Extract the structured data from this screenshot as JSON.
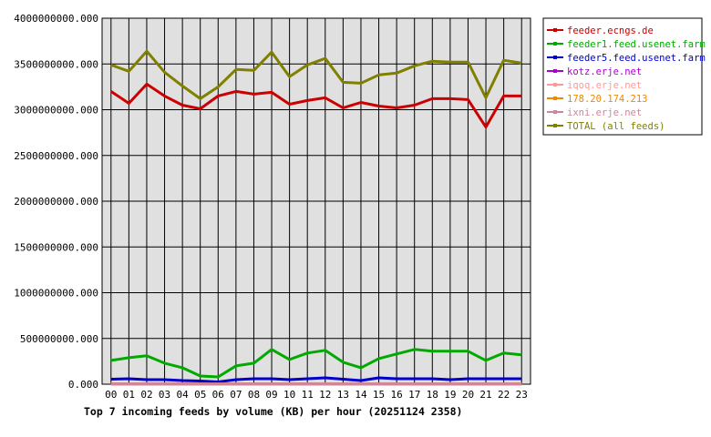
{
  "chart_data": {
    "type": "line",
    "title": "Top 7 incoming feeds by volume (KB) per hour (20251124 2358)",
    "xlabel": "",
    "ylabel": "",
    "categories": [
      "00",
      "01",
      "02",
      "03",
      "04",
      "05",
      "06",
      "07",
      "08",
      "09",
      "10",
      "11",
      "12",
      "13",
      "14",
      "15",
      "16",
      "17",
      "18",
      "19",
      "20",
      "21",
      "22",
      "23"
    ],
    "y_ticks": [
      "0.000",
      "500000000.000",
      "1000000000.000",
      "1500000000.000",
      "2000000000.000",
      "2500000000.000",
      "3000000000.000",
      "3500000000.000",
      "4000000000.000"
    ],
    "ylim": [
      0,
      4000000000
    ],
    "grid": true,
    "legend_position": "right",
    "series": [
      {
        "name": "feeder.ecngs.de",
        "color": "#cc0000",
        "values": [
          3200000000,
          3070000000,
          3280000000,
          3150000000,
          3050000000,
          3010000000,
          3150000000,
          3200000000,
          3170000000,
          3190000000,
          3060000000,
          3100000000,
          3130000000,
          3020000000,
          3080000000,
          3040000000,
          3020000000,
          3050000000,
          3120000000,
          3120000000,
          3110000000,
          2810000000,
          3150000000,
          3150000000
        ]
      },
      {
        "name": "feeder1.feed.usenet.farm",
        "color": "#00aa00",
        "values": [
          260000000,
          290000000,
          310000000,
          230000000,
          180000000,
          90000000,
          80000000,
          200000000,
          230000000,
          380000000,
          270000000,
          340000000,
          370000000,
          240000000,
          180000000,
          280000000,
          330000000,
          380000000,
          360000000,
          360000000,
          360000000,
          260000000,
          340000000,
          320000000
        ]
      },
      {
        "name": "feeder5.feed.usenet.farm",
        "color": "#0000cc",
        "values": [
          55000000,
          60000000,
          50000000,
          50000000,
          40000000,
          35000000,
          25000000,
          50000000,
          60000000,
          60000000,
          50000000,
          60000000,
          70000000,
          55000000,
          40000000,
          70000000,
          60000000,
          60000000,
          60000000,
          50000000,
          60000000,
          60000000,
          60000000,
          60000000
        ]
      },
      {
        "name": "kotz.erje.net",
        "color": "#aa00cc",
        "values": [
          3000000,
          3000000,
          3000000,
          3000000,
          3000000,
          3000000,
          3000000,
          3000000,
          3000000,
          3000000,
          3000000,
          3000000,
          3000000,
          3000000,
          3000000,
          3000000,
          3000000,
          3000000,
          3000000,
          3000000,
          3000000,
          3000000,
          3000000,
          3000000
        ]
      },
      {
        "name": "iqoq.erje.net",
        "color": "#ff9999",
        "values": [
          2000000,
          2000000,
          2000000,
          2000000,
          2000000,
          2000000,
          2000000,
          2000000,
          2000000,
          2000000,
          2000000,
          2000000,
          2000000,
          2000000,
          2000000,
          2000000,
          2000000,
          2000000,
          2000000,
          2000000,
          2000000,
          2000000,
          2000000,
          2000000
        ]
      },
      {
        "name": "178.20.174.213",
        "color": "#ee8800",
        "values": [
          1000000,
          1000000,
          1000000,
          1000000,
          1000000,
          1000000,
          1000000,
          1000000,
          1000000,
          1000000,
          1000000,
          1000000,
          1000000,
          1000000,
          1000000,
          1000000,
          1000000,
          1000000,
          1000000,
          1000000,
          1000000,
          1000000,
          1000000,
          1000000
        ]
      },
      {
        "name": "ixni.erje.net",
        "color": "#cc8899",
        "values": [
          1000000,
          1000000,
          1000000,
          1000000,
          1000000,
          1000000,
          1000000,
          1000000,
          1000000,
          1000000,
          1000000,
          1000000,
          1000000,
          1000000,
          1000000,
          1000000,
          1000000,
          1000000,
          1000000,
          1000000,
          1000000,
          1000000,
          1000000,
          1000000
        ]
      },
      {
        "name": "TOTAL (all feeds)",
        "color": "#808000",
        "values": [
          3490000000,
          3420000000,
          3640000000,
          3410000000,
          3260000000,
          3120000000,
          3250000000,
          3440000000,
          3430000000,
          3630000000,
          3360000000,
          3490000000,
          3560000000,
          3300000000,
          3290000000,
          3380000000,
          3400000000,
          3480000000,
          3530000000,
          3520000000,
          3520000000,
          3130000000,
          3540000000,
          3510000000
        ]
      }
    ]
  }
}
